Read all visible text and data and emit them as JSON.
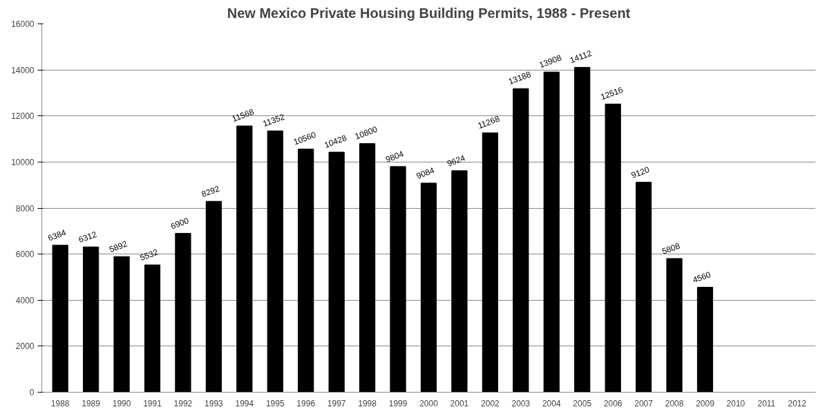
{
  "chart_data": {
    "type": "bar",
    "title": "New Mexico Private Housing Building Permits, 1988 - Present",
    "categories": [
      "1988",
      "1989",
      "1990",
      "1991",
      "1992",
      "1993",
      "1994",
      "1995",
      "1996",
      "1997",
      "1998",
      "1999",
      "2000",
      "2001",
      "2002",
      "2003",
      "2004",
      "2005",
      "2006",
      "2007",
      "2008",
      "2009",
      "2010",
      "2011",
      "2012"
    ],
    "values": [
      6384,
      6312,
      5892,
      5532,
      6900,
      8292,
      11568,
      11352,
      10560,
      10428,
      10800,
      9804,
      9084,
      9624,
      11268,
      13188,
      13908,
      14112,
      12516,
      9120,
      5808,
      4560,
      null,
      null,
      null
    ],
    "color": "#000000",
    "ylim": [
      0,
      16000
    ],
    "yticks": [
      0,
      2000,
      4000,
      6000,
      8000,
      10000,
      12000,
      14000,
      16000
    ],
    "grid": "y",
    "data_labels": true
  }
}
